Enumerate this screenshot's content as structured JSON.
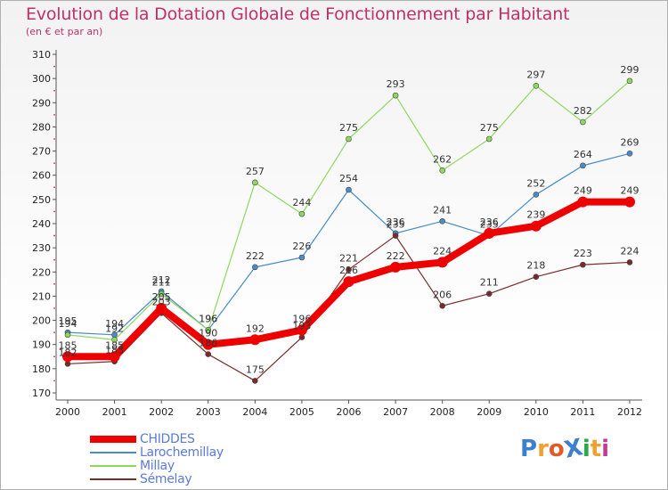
{
  "page": {
    "title": "Evolution de la Dotation Globale de Fonctionnement par Habitant",
    "subtitle": "(en € et par an)"
  },
  "logo": {
    "text": "ProXiti",
    "colors": [
      "#3d7fcf",
      "#f0a030",
      "#e05a2a",
      "#3d7fcf",
      "#2aa84a",
      "#f0a030",
      "#c03a9a"
    ]
  },
  "chart_data": {
    "type": "line",
    "title": "Evolution de la Dotation Globale de Fonctionnement par Habitant",
    "subtitle": "(en € et par an)",
    "xlabel": "",
    "ylabel": "",
    "x": [
      "2000",
      "2001",
      "2002",
      "2003",
      "2004",
      "2005",
      "2006",
      "2007",
      "2008",
      "2009",
      "2010",
      "2011",
      "2012"
    ],
    "ylim": [
      170,
      310
    ],
    "yticks": [
      170,
      180,
      190,
      200,
      210,
      220,
      230,
      240,
      250,
      260,
      270,
      280,
      290,
      300,
      310
    ],
    "grid": false,
    "legend": "bottom-left",
    "series": [
      {
        "name": "CHIDDES",
        "color": "#ee0000",
        "width": 8,
        "marker": 6,
        "values": [
          185,
          185,
          205,
          190,
          192,
          196,
          216,
          222,
          224,
          236,
          239,
          249,
          249
        ]
      },
      {
        "name": "Larochemillay",
        "color": "#4a8cc9",
        "width": 1.2,
        "marker": 3,
        "values": [
          195,
          194,
          212,
          196,
          222,
          226,
          254,
          236,
          241,
          235,
          252,
          264,
          269
        ]
      },
      {
        "name": "Millay",
        "color": "#8fd860",
        "width": 1.2,
        "marker": 3,
        "values": [
          194,
          192,
          211,
          196,
          257,
          244,
          275,
          293,
          262,
          275,
          297,
          282,
          299
        ]
      },
      {
        "name": "Sémelay",
        "color": "#7a2a2a",
        "width": 1.2,
        "marker": 3,
        "values": [
          182,
          183,
          203,
          186,
          175,
          193,
          221,
          235,
          206,
          211,
          218,
          223,
          224
        ]
      }
    ]
  }
}
